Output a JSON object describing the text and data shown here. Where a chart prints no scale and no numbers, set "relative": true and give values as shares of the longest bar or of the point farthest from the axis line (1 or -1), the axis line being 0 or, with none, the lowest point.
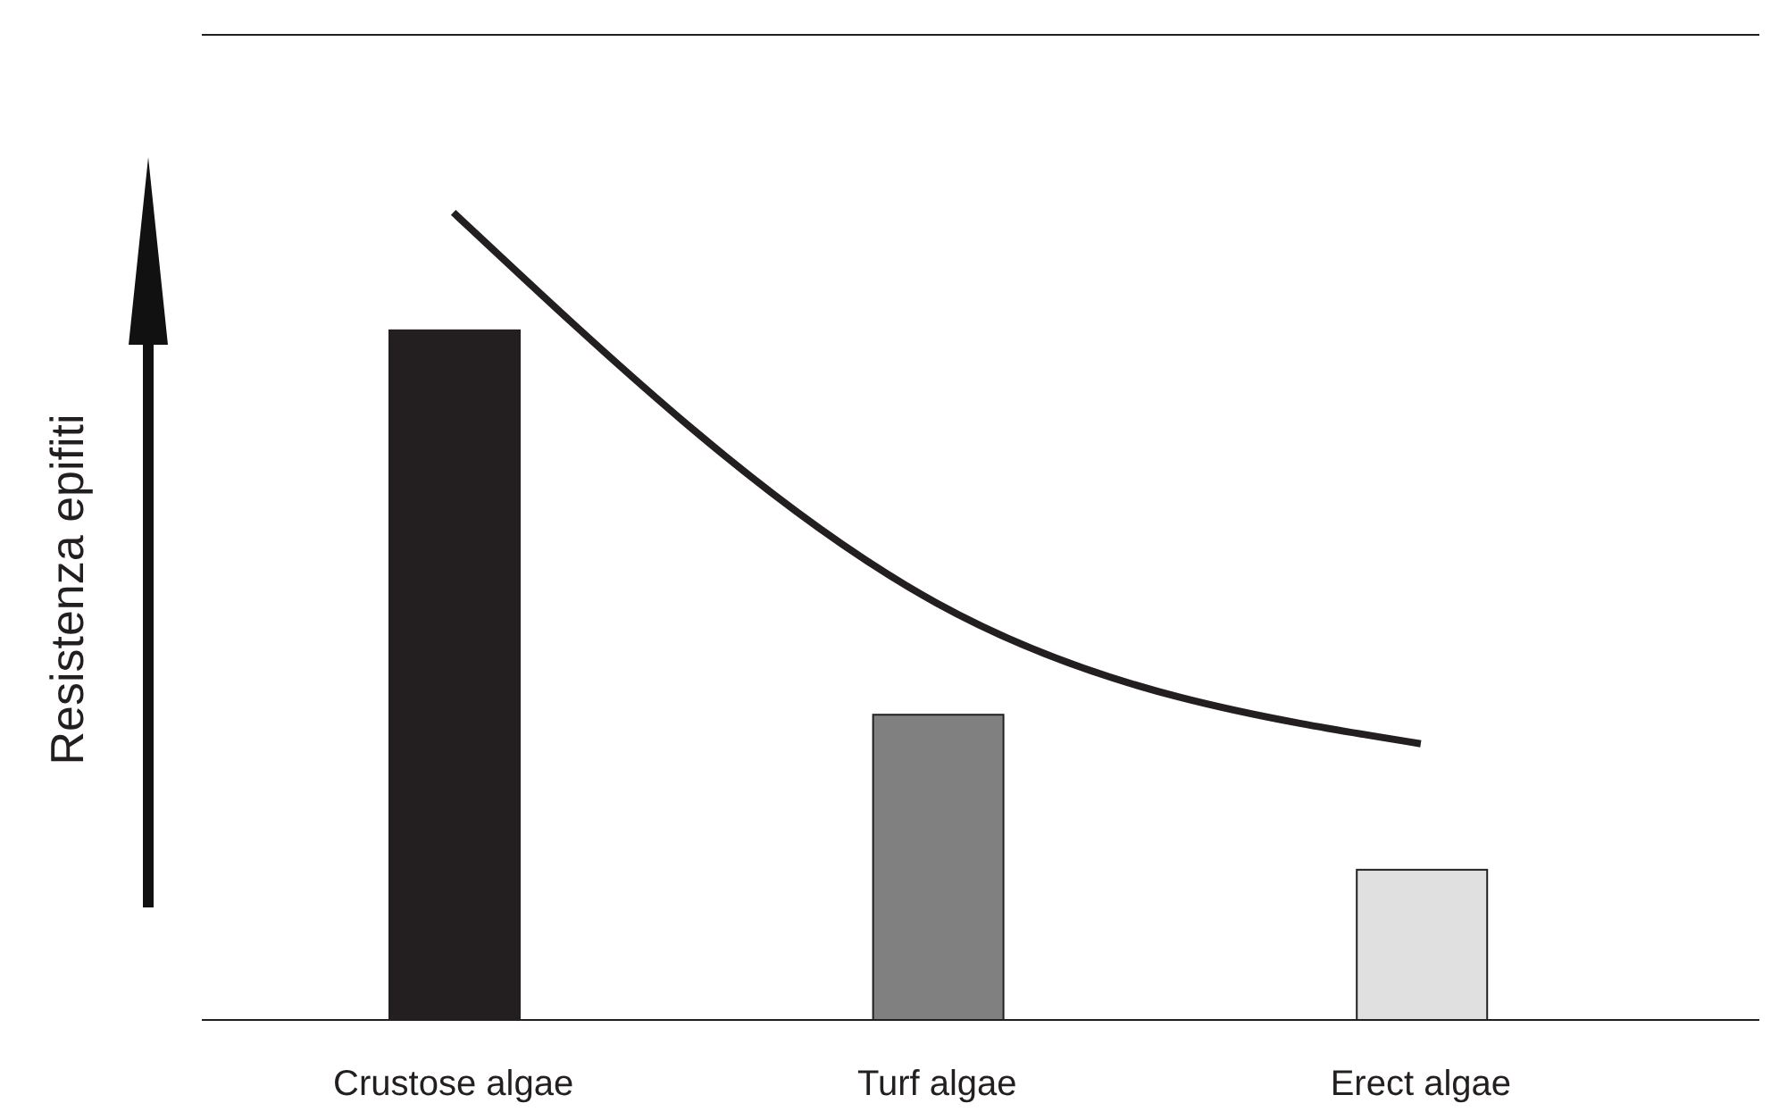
{
  "chart_data": {
    "type": "bar",
    "relative": true,
    "ylabel": "Resistenza epifiti",
    "categories": [
      "Crustose algae",
      "Turf algae",
      "Erect algae"
    ],
    "series": [
      {
        "colors": [
          "#231f20",
          "#808080",
          "#e0e0e0"
        ],
        "values": [
          0.854,
          0.378,
          0.186
        ]
      },
      {
        "type": "line",
        "color": "#231f20",
        "values": [
          1,
          0.516,
          0.342
        ]
      }
    ],
    "grid": false,
    "legend": false,
    "marker": "none",
    "line_style": "solid"
  }
}
